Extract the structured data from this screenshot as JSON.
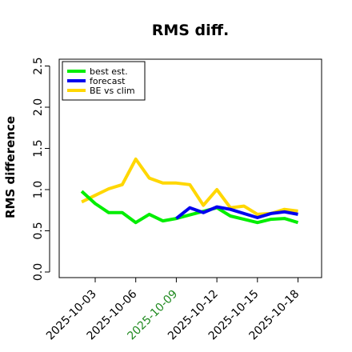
{
  "chart_data": {
    "type": "line",
    "title": "RMS diff.",
    "xlabel": "",
    "ylabel": "RMS difference",
    "ylim": [
      0,
      2.5
    ],
    "yticks": [
      "0.0",
      "0.5",
      "1.0",
      "1.5",
      "2.0",
      "2.5"
    ],
    "xticks": [
      "2025-10-03",
      "2025-10-06",
      "2025-10-09",
      "2025-10-12",
      "2025-10-15",
      "2025-10-18"
    ],
    "highlight_tick": "2025-10-09",
    "highlight_color": "#228b22",
    "grid": false,
    "legend_position": "top-left",
    "series": [
      {
        "name": "best est.",
        "color": "#00ee00",
        "points": [
          [
            "2025-10-02",
            0.98
          ],
          [
            "2025-10-03",
            0.83
          ],
          [
            "2025-10-04",
            0.72
          ],
          [
            "2025-10-05",
            0.72
          ],
          [
            "2025-10-06",
            0.6
          ],
          [
            "2025-10-07",
            0.7
          ],
          [
            "2025-10-08",
            0.62
          ],
          [
            "2025-10-09",
            0.65
          ],
          [
            "2025-10-12",
            0.78
          ],
          [
            "2025-10-13",
            0.68
          ],
          [
            "2025-10-14",
            0.64
          ],
          [
            "2025-10-15",
            0.6
          ],
          [
            "2025-10-16",
            0.64
          ],
          [
            "2025-10-17",
            0.65
          ],
          [
            "2025-10-18",
            0.6
          ]
        ]
      },
      {
        "name": "forecast",
        "color": "#0000ee",
        "points": [
          [
            "2025-10-09",
            0.65
          ],
          [
            "2025-10-10",
            0.78
          ],
          [
            "2025-10-11",
            0.72
          ],
          [
            "2025-10-12",
            0.79
          ],
          [
            "2025-10-13",
            0.76
          ],
          [
            "2025-10-14",
            0.71
          ],
          [
            "2025-10-15",
            0.66
          ],
          [
            "2025-10-16",
            0.71
          ],
          [
            "2025-10-17",
            0.73
          ],
          [
            "2025-10-18",
            0.7
          ]
        ]
      },
      {
        "name": "BE vs clim",
        "color": "#ffd700",
        "points": [
          [
            "2025-10-02",
            0.85
          ],
          [
            "2025-10-03",
            0.93
          ],
          [
            "2025-10-04",
            1.01
          ],
          [
            "2025-10-05",
            1.06
          ],
          [
            "2025-10-06",
            1.37
          ],
          [
            "2025-10-07",
            1.14
          ],
          [
            "2025-10-08",
            1.08
          ],
          [
            "2025-10-09",
            1.08
          ],
          [
            "2025-10-10",
            1.06
          ],
          [
            "2025-10-11",
            0.81
          ],
          [
            "2025-10-12",
            1.0
          ],
          [
            "2025-10-13",
            0.78
          ],
          [
            "2025-10-14",
            0.8
          ],
          [
            "2025-10-15",
            0.7
          ],
          [
            "2025-10-16",
            0.71
          ],
          [
            "2025-10-17",
            0.76
          ],
          [
            "2025-10-18",
            0.74
          ]
        ]
      }
    ]
  }
}
